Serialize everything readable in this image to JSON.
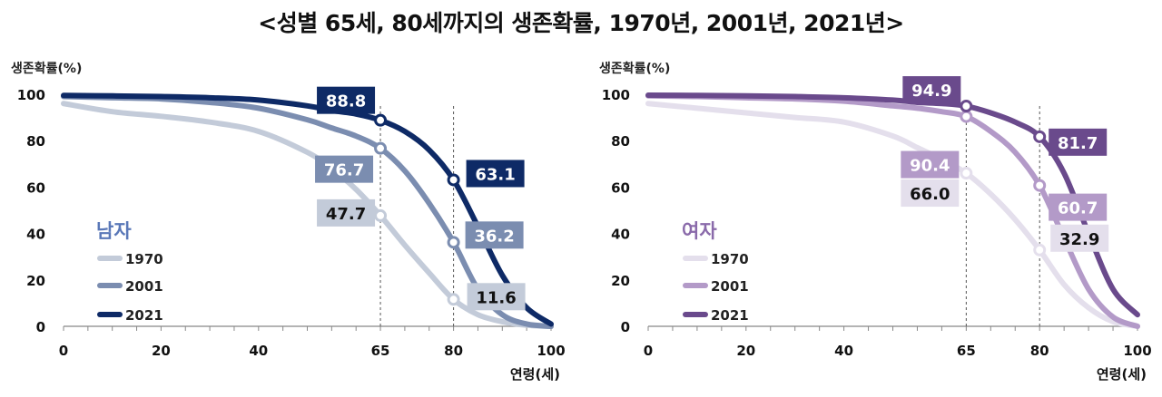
{
  "title": "<성별 65세, 80세까지의 생존확률, 1970년, 2001년, 2021년>",
  "chart_data": [
    {
      "type": "line",
      "group_label": "남자",
      "xlabel": "연령(세)",
      "ylabel": "생존확률(%)",
      "xlim": [
        0,
        100
      ],
      "ylim": [
        0,
        100
      ],
      "x_ticks": [
        "0",
        "20",
        "40",
        "65",
        "80",
        "100"
      ],
      "y_ticks": [
        "0",
        "20",
        "40",
        "60",
        "80",
        "100"
      ],
      "reference_lines_x": [
        65,
        80
      ],
      "series": [
        {
          "name": "1970",
          "color": "#c3cbd9",
          "x": [
            0,
            10,
            20,
            30,
            40,
            50,
            55,
            60,
            65,
            70,
            75,
            80,
            85,
            90,
            95,
            100
          ],
          "values": [
            96,
            92.5,
            90.5,
            88,
            84,
            75,
            68,
            59,
            47.7,
            35,
            23,
            11.6,
            5,
            2,
            0.5,
            0
          ]
        },
        {
          "name": "2001",
          "color": "#7b8db0",
          "x": [
            0,
            10,
            20,
            30,
            40,
            50,
            55,
            60,
            65,
            70,
            75,
            80,
            85,
            90,
            95,
            100
          ],
          "values": [
            99,
            98.5,
            98,
            96.5,
            94,
            89,
            85.5,
            82,
            76.7,
            67,
            53,
            36.2,
            16,
            5,
            1,
            0
          ]
        },
        {
          "name": "2021",
          "color": "#0e2a66",
          "x": [
            0,
            10,
            20,
            30,
            40,
            50,
            55,
            60,
            65,
            70,
            75,
            80,
            85,
            90,
            95,
            100
          ],
          "values": [
            99.5,
            99.3,
            99,
            98.5,
            97.5,
            95,
            93,
            91.5,
            88.8,
            84,
            76,
            63.1,
            43,
            22,
            8,
            1
          ]
        }
      ],
      "data_labels": [
        {
          "series": "1970",
          "x": 65,
          "y": 47.7,
          "text": "47.7"
        },
        {
          "series": "1970",
          "x": 80,
          "y": 11.6,
          "text": "11.6"
        },
        {
          "series": "2001",
          "x": 65,
          "y": 76.7,
          "text": "76.7"
        },
        {
          "series": "2001",
          "x": 80,
          "y": 36.2,
          "text": "36.2"
        },
        {
          "series": "2021",
          "x": 65,
          "y": 88.8,
          "text": "88.8"
        },
        {
          "series": "2021",
          "x": 80,
          "y": 63.1,
          "text": "63.1"
        }
      ]
    },
    {
      "type": "line",
      "group_label": "여자",
      "xlabel": "연령(세)",
      "ylabel": "생존확률(%)",
      "xlim": [
        0,
        100
      ],
      "ylim": [
        0,
        100
      ],
      "x_ticks": [
        "0",
        "20",
        "40",
        "65",
        "80",
        "100"
      ],
      "y_ticks": [
        "0",
        "20",
        "40",
        "60",
        "80",
        "100"
      ],
      "reference_lines_x": [
        65,
        80
      ],
      "series": [
        {
          "name": "1970",
          "color": "#e4dfec",
          "x": [
            0,
            10,
            20,
            30,
            40,
            50,
            55,
            60,
            65,
            70,
            75,
            80,
            85,
            90,
            95,
            100
          ],
          "values": [
            96,
            94,
            92,
            90,
            88,
            82,
            77,
            72,
            66.0,
            57,
            46,
            32.9,
            18,
            8,
            2,
            0
          ]
        },
        {
          "name": "2001",
          "color": "#b39ac8",
          "x": [
            0,
            10,
            20,
            30,
            40,
            50,
            55,
            60,
            65,
            70,
            75,
            80,
            85,
            90,
            95,
            100
          ],
          "values": [
            99.3,
            99,
            98.5,
            98,
            97,
            95,
            94,
            92.5,
            90.4,
            84,
            75,
            60.7,
            38,
            16,
            4,
            0
          ]
        },
        {
          "name": "2021",
          "color": "#6a4a8c",
          "x": [
            0,
            10,
            20,
            30,
            40,
            50,
            55,
            60,
            65,
            70,
            75,
            80,
            85,
            90,
            95,
            100
          ],
          "values": [
            99.6,
            99.5,
            99.3,
            99,
            98.5,
            97.5,
            96.5,
            96,
            94.9,
            92,
            88,
            81.7,
            66,
            40,
            16,
            5
          ]
        }
      ],
      "data_labels": [
        {
          "series": "1970",
          "x": 65,
          "y": 66.0,
          "text": "66.0"
        },
        {
          "series": "1970",
          "x": 80,
          "y": 32.9,
          "text": "32.9"
        },
        {
          "series": "2001",
          "x": 65,
          "y": 90.4,
          "text": "90.4"
        },
        {
          "series": "2001",
          "x": 80,
          "y": 60.7,
          "text": "60.7"
        },
        {
          "series": "2021",
          "x": 65,
          "y": 94.9,
          "text": "94.9"
        },
        {
          "series": "2021",
          "x": 80,
          "y": 81.7,
          "text": "81.7"
        }
      ]
    }
  ]
}
